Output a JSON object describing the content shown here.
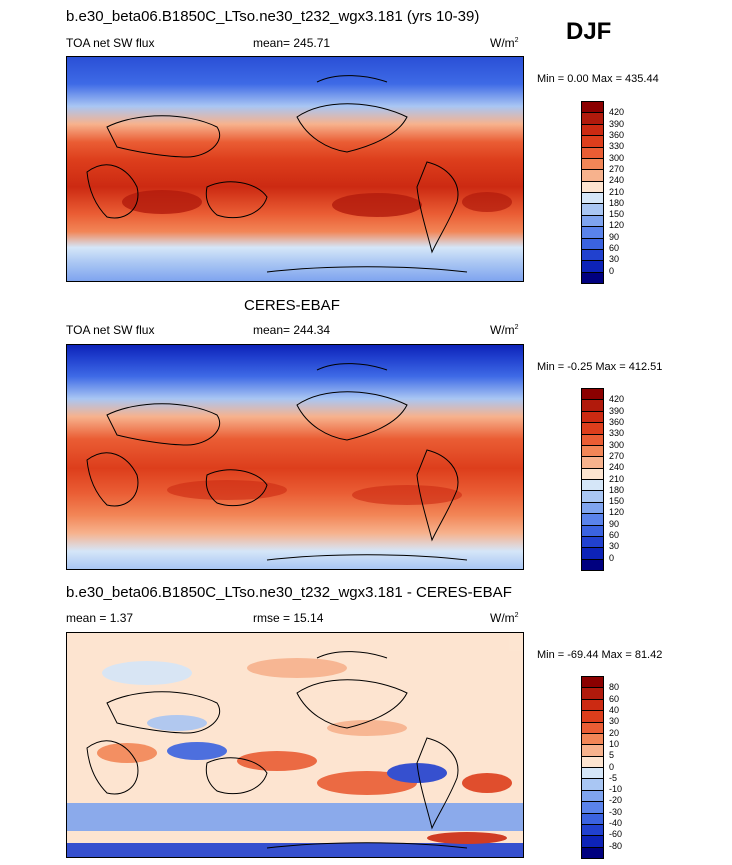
{
  "season": "DJF",
  "panels": [
    {
      "title": "b.e30_beta06.B1850C_LTso.ne30_t232_wgx3.181 (yrs 10-39)",
      "left_label": "TOA net SW flux",
      "center_label": "mean= 245.71",
      "units": "W/m",
      "units_sup": "2",
      "minmax": "Min =   0.00 Max = 435.44",
      "colorbar": {
        "labels": [
          "420",
          "390",
          "360",
          "330",
          "300",
          "270",
          "240",
          "210",
          "180",
          "150",
          "120",
          "90",
          "60",
          "30",
          "0"
        ],
        "colors": [
          "#8b0000",
          "#b11a0c",
          "#cc2a12",
          "#dd3e1c",
          "#ea5d34",
          "#f28657",
          "#f7b28d",
          "#fde4d0",
          "#d5e6f8",
          "#a9c6f3",
          "#7fa4ef",
          "#5a83eb",
          "#3b63e0",
          "#2141cf",
          "#0d23b8",
          "#00007f"
        ]
      }
    },
    {
      "title": "CERES-EBAF",
      "left_label": "TOA net SW flux",
      "center_label": "mean= 244.34",
      "units": "W/m",
      "units_sup": "2",
      "minmax": "Min =  -0.25 Max = 412.51",
      "colorbar": {
        "labels": [
          "420",
          "390",
          "360",
          "330",
          "300",
          "270",
          "240",
          "210",
          "180",
          "150",
          "120",
          "90",
          "60",
          "30",
          "0"
        ],
        "colors": [
          "#8b0000",
          "#b11a0c",
          "#cc2a12",
          "#dd3e1c",
          "#ea5d34",
          "#f28657",
          "#f7b28d",
          "#fde4d0",
          "#d5e6f8",
          "#a9c6f3",
          "#7fa4ef",
          "#5a83eb",
          "#3b63e0",
          "#2141cf",
          "#0d23b8",
          "#00007f"
        ]
      }
    },
    {
      "title": "b.e30_beta06.B1850C_LTso.ne30_t232_wgx3.181 - CERES-EBAF",
      "left_label": "mean =   1.37",
      "center_label": "rmse =  15.14",
      "units": "W/m",
      "units_sup": "2",
      "minmax": "Min = -69.44 Max =  81.42",
      "colorbar": {
        "labels": [
          "80",
          "60",
          "40",
          "30",
          "20",
          "10",
          "5",
          "0",
          "-5",
          "-10",
          "-20",
          "-30",
          "-40",
          "-60",
          "-80"
        ],
        "colors": [
          "#8b0000",
          "#b11a0c",
          "#cc2a12",
          "#dd3e1c",
          "#ea5d34",
          "#f28657",
          "#f7b28d",
          "#fde4d0",
          "#d5e6f8",
          "#a9c6f3",
          "#7fa4ef",
          "#5a83eb",
          "#3b63e0",
          "#2141cf",
          "#0d23b8",
          "#00007f"
        ]
      }
    }
  ]
}
